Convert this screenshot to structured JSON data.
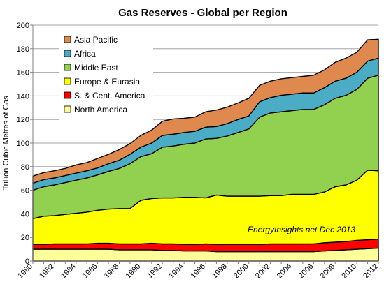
{
  "chart_data": {
    "type": "area",
    "stacked": true,
    "title": "Gas Reserves - Global per Region",
    "ylabel": "Trillion Cubic Metres of Gas",
    "xlabel": "",
    "ylim": [
      0,
      200
    ],
    "yticks": [
      0,
      20,
      40,
      60,
      80,
      100,
      120,
      140,
      160,
      180,
      200
    ],
    "xlim": [
      1980,
      2012
    ],
    "xticks": [
      1980,
      1982,
      1984,
      1986,
      1988,
      1990,
      1992,
      1994,
      1996,
      1998,
      2000,
      2002,
      2004,
      2006,
      2008,
      2010,
      2012
    ],
    "grid": "horizontal",
    "legend_position": "top-left",
    "annotation": "EnergyInsights.net  Dec 2013",
    "x": [
      1980,
      1981,
      1982,
      1983,
      1984,
      1985,
      1986,
      1987,
      1988,
      1989,
      1990,
      1991,
      1992,
      1993,
      1994,
      1995,
      1996,
      1997,
      1998,
      1999,
      2000,
      2001,
      2002,
      2003,
      2004,
      2005,
      2006,
      2007,
      2008,
      2009,
      2010,
      2011,
      2012
    ],
    "series": [
      {
        "name": "North America",
        "color": "#ffff99",
        "values": [
          10,
          10,
          10,
          10,
          10,
          10,
          10,
          10,
          9.5,
          9.5,
          9.5,
          9.5,
          9,
          9,
          8.5,
          8.5,
          8.5,
          8,
          8,
          8,
          8,
          8,
          8,
          8,
          8,
          8,
          8,
          8.5,
          9,
          9.5,
          10,
          10.5,
          11
        ]
      },
      {
        "name": "S. & Cent. America",
        "color": "#ff0000",
        "values": [
          4,
          4,
          4.5,
          4.5,
          4.5,
          4.5,
          5,
          5,
          5,
          5,
          5,
          5.5,
          5.5,
          5.5,
          5.5,
          5.5,
          6,
          6,
          6,
          6,
          6,
          6,
          6.5,
          6.5,
          6.5,
          6.5,
          6.5,
          7,
          7,
          7,
          7.5,
          7.5,
          7.5
        ]
      },
      {
        "name": "Europe & Eurasia",
        "color": "#ffff00",
        "values": [
          22,
          24,
          24,
          25,
          26,
          27,
          28,
          29,
          30,
          30,
          37,
          38,
          39,
          39,
          40,
          40,
          39,
          42,
          41,
          41,
          41,
          41,
          41,
          41,
          42,
          42,
          42,
          43,
          47,
          48,
          51,
          59,
          58
        ]
      },
      {
        "name": "Middle East",
        "color": "#92d050",
        "values": [
          24,
          25,
          26,
          27,
          28,
          29,
          30,
          32,
          34,
          38,
          37,
          38,
          43,
          44,
          45,
          46,
          50,
          48,
          51,
          54,
          57,
          67,
          70,
          71,
          71,
          72,
          72,
          74,
          75,
          76,
          77,
          78,
          81
        ]
      },
      {
        "name": "Africa",
        "color": "#4bacc6",
        "values": [
          6,
          6,
          6,
          6,
          6,
          6,
          6,
          6.5,
          7,
          8,
          8,
          9,
          10,
          10,
          10,
          10,
          10,
          10,
          10.5,
          11,
          11,
          13,
          13,
          14,
          14,
          14,
          14,
          14.5,
          14.5,
          14.5,
          14.5,
          14.5,
          14.5
        ]
      },
      {
        "name": "Asia Pacific",
        "color": "#e0894f",
        "values": [
          6,
          6,
          6,
          6,
          7,
          7,
          8,
          8,
          9,
          9,
          10,
          11,
          12,
          13,
          12,
          12,
          13,
          14,
          14,
          14,
          15,
          14,
          14,
          14,
          14,
          14,
          15,
          15,
          16,
          17,
          17,
          18,
          16
        ]
      }
    ]
  }
}
